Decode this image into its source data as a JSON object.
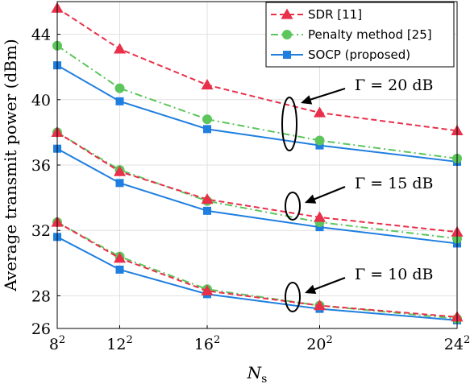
{
  "chart_data": {
    "type": "line",
    "xlabel": "N_s",
    "ylabel": "Average transmit power (dBm)",
    "x_tick_labels": [
      {
        "base": "8",
        "exp": "2"
      },
      {
        "base": "12",
        "exp": "2"
      },
      {
        "base": "16",
        "exp": "2"
      },
      {
        "base": "20",
        "exp": "2"
      },
      {
        "base": "24",
        "exp": "2"
      }
    ],
    "x": [
      64,
      144,
      256,
      400,
      576
    ],
    "xlim": [
      64,
      576
    ],
    "ylim": [
      26,
      46
    ],
    "yticks": [
      26,
      28,
      32,
      36,
      40,
      44
    ],
    "grid": true,
    "legend_position": "top-right",
    "groups": [
      {
        "annotation": "Γ = 20 dB",
        "series": [
          {
            "name": "SDR [11]",
            "values": [
              45.6,
              43.1,
              40.9,
              39.2,
              38.1
            ]
          },
          {
            "name": "Penalty method [25]",
            "values": [
              43.3,
              40.7,
              38.8,
              37.5,
              36.4
            ]
          },
          {
            "name": "SOCP (proposed)",
            "values": [
              42.1,
              39.9,
              38.2,
              37.2,
              36.2
            ]
          }
        ]
      },
      {
        "annotation": "Γ = 15 dB",
        "series": [
          {
            "name": "SDR [11]",
            "values": [
              38.0,
              35.6,
              33.9,
              32.8,
              31.9
            ]
          },
          {
            "name": "Penalty method [25]",
            "values": [
              38.0,
              35.7,
              33.8,
              32.5,
              31.5
            ]
          },
          {
            "name": "SOCP (proposed)",
            "values": [
              37.0,
              34.9,
              33.2,
              32.2,
              31.2
            ]
          }
        ]
      },
      {
        "annotation": "Γ = 10 dB",
        "series": [
          {
            "name": "SDR [11]",
            "values": [
              32.5,
              30.3,
              28.3,
              27.4,
              26.7
            ]
          },
          {
            "name": "Penalty method [25]",
            "values": [
              32.5,
              30.4,
              28.4,
              27.4,
              26.6
            ]
          },
          {
            "name": "SOCP (proposed)",
            "values": [
              31.6,
              29.6,
              28.1,
              27.2,
              26.5
            ]
          }
        ]
      }
    ],
    "legend": [
      {
        "name": "SDR [11]",
        "color": "#e8304a",
        "marker": "triangle",
        "dash": "dashed"
      },
      {
        "name": "Penalty method [25]",
        "color": "#5cc65c",
        "marker": "circle",
        "dash": "dashdot"
      },
      {
        "name": "SOCP (proposed)",
        "color": "#1f7fe0",
        "marker": "square",
        "dash": "solid"
      }
    ]
  }
}
